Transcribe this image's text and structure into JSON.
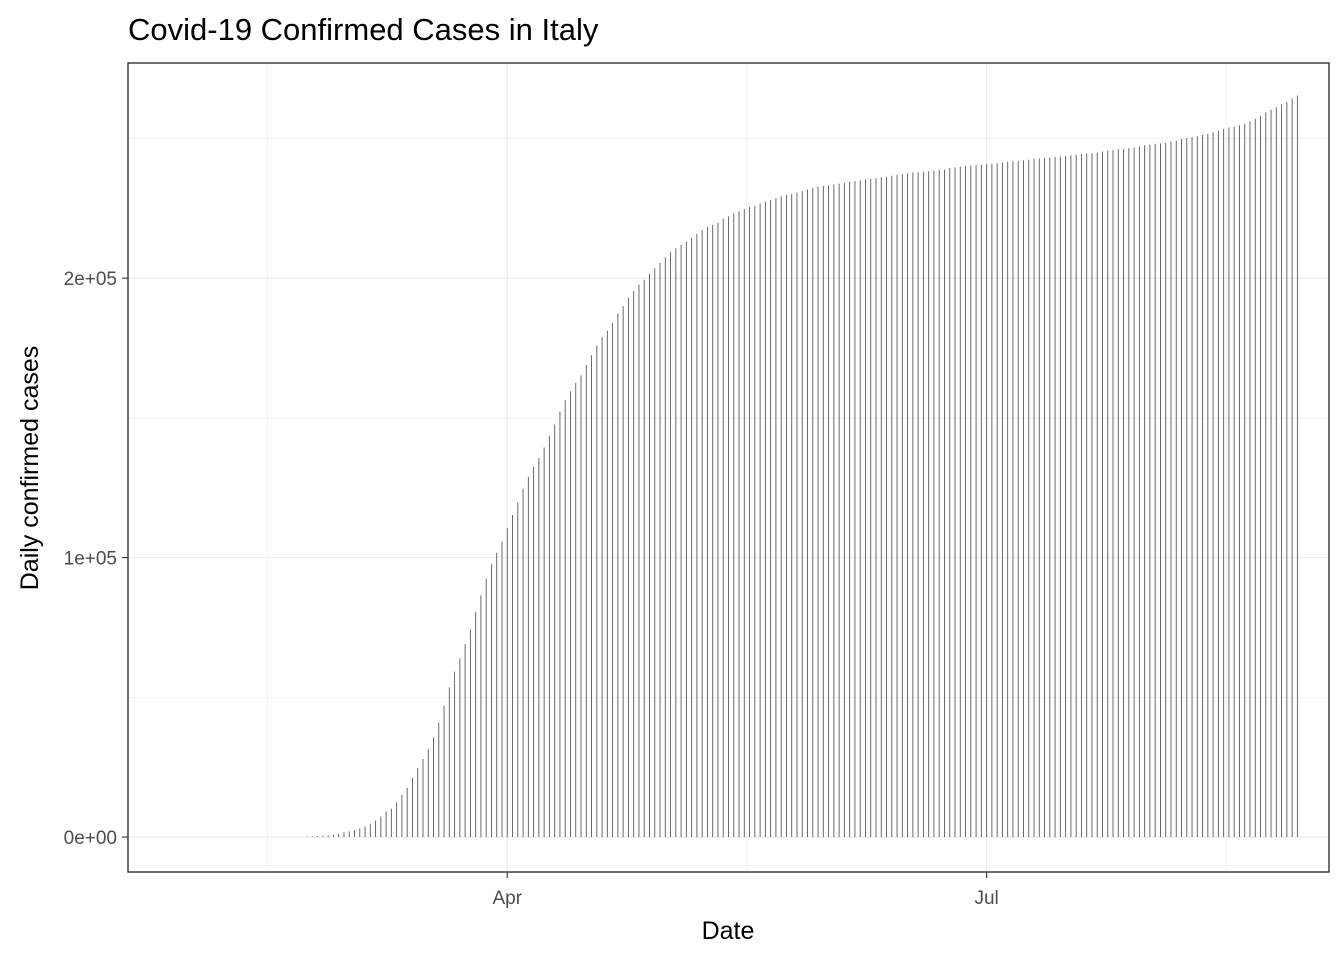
{
  "chart_data": {
    "type": "bar",
    "title": "Covid-19 Confirmed Cases in Italy",
    "xlabel": "Date",
    "ylabel": "Daily confirmed cases",
    "x_ticks": [
      {
        "date": "2020-04-01",
        "label": "Apr"
      },
      {
        "date": "2020-07-01",
        "label": "Jul"
      }
    ],
    "y_ticks": [
      {
        "value": 0,
        "label": "0e+00"
      },
      {
        "value": 100000,
        "label": "1e+05"
      },
      {
        "value": 200000,
        "label": "2e+05"
      }
    ],
    "xlim": [
      "2020-01-20",
      "2020-09-04"
    ],
    "ylim": [
      -12500,
      277000
    ],
    "grid": true,
    "series": [
      {
        "start_date": "2020-02-22",
        "values": [
          62,
          155,
          229,
          322,
          453,
          655,
          888,
          1128,
          1694,
          2036,
          2502,
          3089,
          3858,
          4636,
          5883,
          7375,
          9172,
          10149,
          12462,
          15113,
          17660,
          21157,
          24747,
          27980,
          31506,
          35713,
          41035,
          47021,
          53578,
          59138,
          63927,
          69176,
          74386,
          80539,
          86498,
          92472,
          97689,
          101739,
          105792,
          110574,
          115242,
          119827,
          124632,
          128948,
          132547,
          135586,
          139422,
          143626,
          147577,
          152271,
          156363,
          159516,
          162488,
          165155,
          168941,
          172434,
          175925,
          178972,
          181228,
          183957,
          187327,
          189973,
          192994,
          195351,
          197675,
          199414,
          201505,
          203591,
          205463,
          207428,
          209328,
          210717,
          211938,
          213013,
          214457,
          215858,
          217185,
          218268,
          219070,
          219814,
          221216,
          222104,
          223096,
          223885,
          224760,
          225435,
          225886,
          226699,
          227364,
          228006,
          228658,
          229327,
          229858,
          230158,
          230555,
          231139,
          231732,
          232248,
          232664,
          232997,
          233197,
          233515,
          233836,
          234013,
          234531,
          234801,
          234998,
          235278,
          235561,
          235763,
          236142,
          236305,
          236651,
          236989,
          237290,
          237500,
          237828,
          238011,
          238159,
          238275,
          238499,
          238720,
          238833,
          239410,
          239706,
          239961,
          240136,
          240310,
          240436,
          240578,
          240760,
          240961,
          241184,
          241419,
          241611,
          241819,
          241956,
          242149,
          242363,
          242639,
          242827,
          243061,
          243230,
          243344,
          243506,
          243736,
          243967,
          244216,
          244434,
          244624,
          244752,
          244990,
          245338,
          245590,
          245864,
          246118,
          246286,
          246488,
          246776,
          247158,
          247537,
          247832,
          248070,
          248229,
          248419,
          248803,
          249204,
          249756,
          250103,
          250566,
          250825,
          251237,
          251713,
          252235,
          252809,
          253438,
          253915,
          254235,
          254636,
          255278,
          256118,
          257065,
          258136,
          259345,
          260298,
          261174,
          262204,
          263031,
          264318,
          265409
        ]
      }
    ]
  }
}
